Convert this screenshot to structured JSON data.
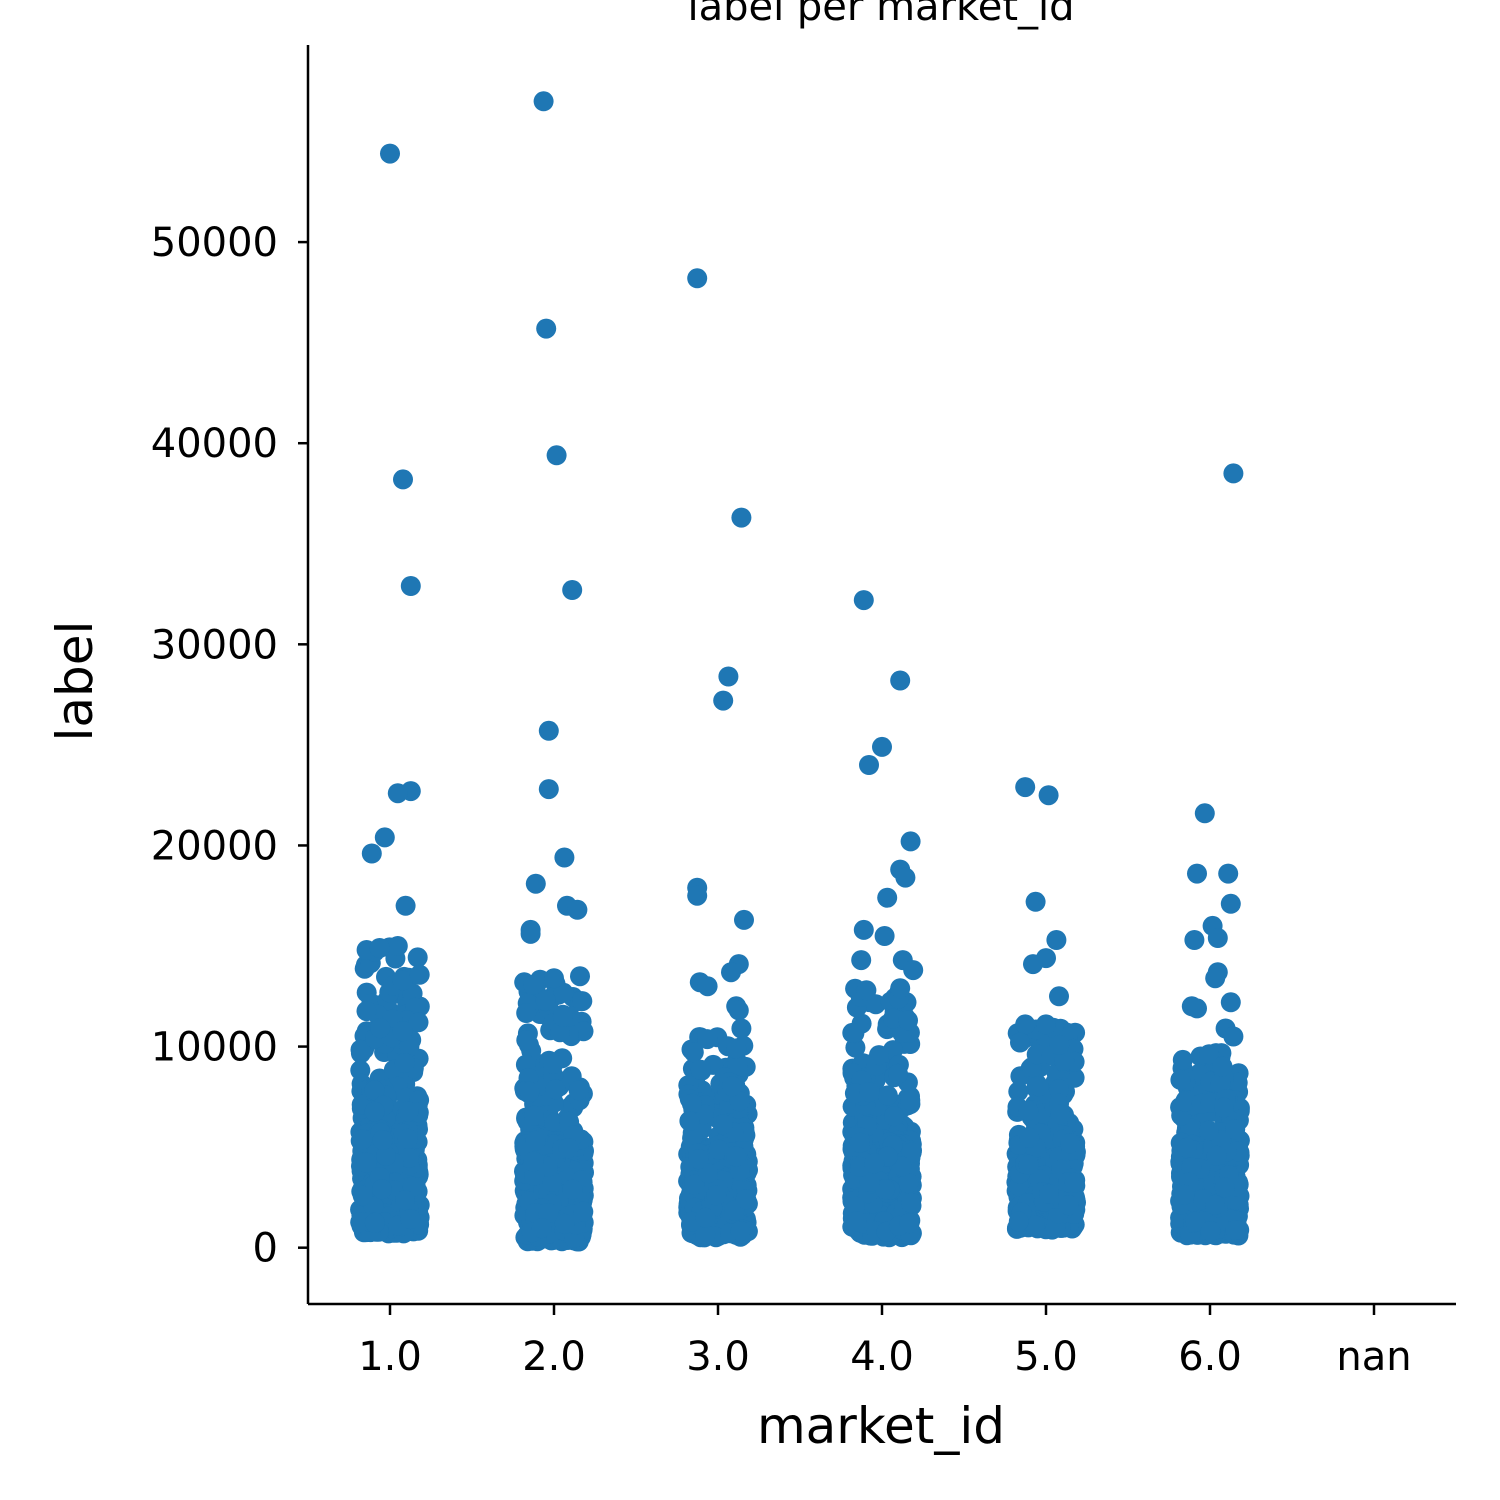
{
  "chart_data": {
    "type": "scatter",
    "subtype": "strip",
    "title": "label per market_id",
    "xlabel": "market_id",
    "ylabel": "label",
    "categories": [
      "1.0",
      "2.0",
      "3.0",
      "4.0",
      "5.0",
      "6.0",
      "nan"
    ],
    "y_ticks": [
      0,
      10000,
      20000,
      30000,
      40000,
      50000
    ],
    "ylim": [
      -2800,
      59800
    ],
    "grid": false,
    "legend": "none",
    "color": "#1f77b4",
    "series": [
      {
        "category": "1.0",
        "dense_range": [
          700,
          15000
        ],
        "dense_center": 3500,
        "points": [
          {
            "x": 0.0,
            "y": 54400
          },
          {
            "x": 0.05,
            "y": 38200
          },
          {
            "x": 0.08,
            "y": 32900
          },
          {
            "x": 0.08,
            "y": 22700
          },
          {
            "x": 0.03,
            "y": 22600
          },
          {
            "x": -0.02,
            "y": 20400
          },
          {
            "x": -0.07,
            "y": 19600
          },
          {
            "x": 0.06,
            "y": 17000
          },
          {
            "x": 0.03,
            "y": 15000
          },
          {
            "x": -0.09,
            "y": 14800
          },
          {
            "x": -0.04,
            "y": 14900
          }
        ]
      },
      {
        "category": "2.0",
        "dense_range": [
          300,
          13500
        ],
        "dense_center": 3200,
        "points": [
          {
            "x": -0.04,
            "y": 57000
          },
          {
            "x": -0.03,
            "y": 45700
          },
          {
            "x": 0.01,
            "y": 39400
          },
          {
            "x": 0.07,
            "y": 32700
          },
          {
            "x": -0.02,
            "y": 25700
          },
          {
            "x": -0.02,
            "y": 22800
          },
          {
            "x": 0.04,
            "y": 19400
          },
          {
            "x": -0.07,
            "y": 18100
          },
          {
            "x": 0.05,
            "y": 17000
          },
          {
            "x": 0.09,
            "y": 16800
          },
          {
            "x": -0.09,
            "y": 15800
          },
          {
            "x": -0.09,
            "y": 15600
          },
          {
            "x": 0.1,
            "y": 13500
          },
          {
            "x": 0.0,
            "y": 13400
          }
        ]
      },
      {
        "category": "3.0",
        "dense_range": [
          500,
          10500
        ],
        "dense_center": 3000,
        "points": [
          {
            "x": -0.08,
            "y": 48200
          },
          {
            "x": 0.09,
            "y": 36300
          },
          {
            "x": 0.04,
            "y": 28400
          },
          {
            "x": 0.02,
            "y": 27200
          },
          {
            "x": -0.08,
            "y": 17900
          },
          {
            "x": -0.08,
            "y": 17500
          },
          {
            "x": 0.1,
            "y": 16300
          },
          {
            "x": 0.08,
            "y": 14100
          },
          {
            "x": 0.05,
            "y": 13700
          },
          {
            "x": -0.07,
            "y": 13200
          },
          {
            "x": -0.04,
            "y": 13000
          },
          {
            "x": 0.07,
            "y": 12000
          },
          {
            "x": 0.08,
            "y": 11800
          },
          {
            "x": 0.09,
            "y": 10900
          }
        ]
      },
      {
        "category": "4.0",
        "dense_range": [
          500,
          13000
        ],
        "dense_center": 3200,
        "points": [
          {
            "x": -0.07,
            "y": 32200
          },
          {
            "x": 0.07,
            "y": 28200
          },
          {
            "x": 0.0,
            "y": 24900
          },
          {
            "x": -0.05,
            "y": 24000
          },
          {
            "x": 0.11,
            "y": 20200
          },
          {
            "x": 0.07,
            "y": 18800
          },
          {
            "x": 0.09,
            "y": 18400
          },
          {
            "x": 0.02,
            "y": 17400
          },
          {
            "x": -0.07,
            "y": 15800
          },
          {
            "x": 0.01,
            "y": 15500
          },
          {
            "x": -0.08,
            "y": 14300
          },
          {
            "x": 0.08,
            "y": 14300
          },
          {
            "x": 0.12,
            "y": 13800
          },
          {
            "x": -0.06,
            "y": 12800
          },
          {
            "x": 0.07,
            "y": 12900
          },
          {
            "x": 0.1,
            "y": 11300
          }
        ]
      },
      {
        "category": "5.0",
        "dense_range": [
          900,
          11000
        ],
        "dense_center": 3200,
        "points": [
          {
            "x": -0.08,
            "y": 22900
          },
          {
            "x": 0.01,
            "y": 22500
          },
          {
            "x": -0.04,
            "y": 17200
          },
          {
            "x": 0.04,
            "y": 15300
          },
          {
            "x": 0.0,
            "y": 14400
          },
          {
            "x": -0.05,
            "y": 14100
          },
          {
            "x": 0.05,
            "y": 12500
          },
          {
            "x": 0.0,
            "y": 11100
          },
          {
            "x": -0.08,
            "y": 11100
          },
          {
            "x": -0.1,
            "y": 10200
          }
        ]
      },
      {
        "category": "6.0",
        "dense_range": [
          600,
          9700
        ],
        "dense_center": 3200,
        "points": [
          {
            "x": 0.09,
            "y": 38500
          },
          {
            "x": -0.02,
            "y": 21600
          },
          {
            "x": -0.05,
            "y": 18600
          },
          {
            "x": 0.07,
            "y": 18600
          },
          {
            "x": 0.08,
            "y": 17100
          },
          {
            "x": 0.01,
            "y": 16000
          },
          {
            "x": 0.03,
            "y": 15400
          },
          {
            "x": -0.06,
            "y": 15300
          },
          {
            "x": 0.03,
            "y": 13700
          },
          {
            "x": 0.02,
            "y": 13400
          },
          {
            "x": 0.08,
            "y": 12200
          },
          {
            "x": -0.07,
            "y": 12000
          },
          {
            "x": -0.05,
            "y": 11900
          },
          {
            "x": 0.06,
            "y": 10900
          },
          {
            "x": 0.09,
            "y": 10500
          }
        ]
      },
      {
        "category": "nan",
        "points": []
      }
    ]
  }
}
